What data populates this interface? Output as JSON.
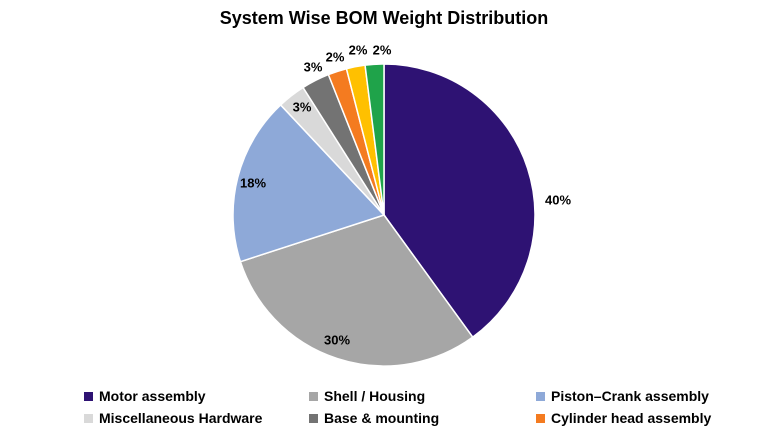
{
  "chart_data": {
    "type": "pie",
    "title": "System Wise BOM Weight Distribution",
    "slices": [
      {
        "name": "Motor assembly",
        "value": 40,
        "label": "40%",
        "color": "#2e1273"
      },
      {
        "name": "Shell / Housing",
        "value": 30,
        "label": "30%",
        "color": "#a6a6a6"
      },
      {
        "name": "Piston–Crank assembly",
        "value": 18,
        "label": "18%",
        "color": "#8ea9d8"
      },
      {
        "name": "Miscellaneous Hardware",
        "value": 3,
        "label": "3%",
        "color": "#d9d9d9"
      },
      {
        "name": "Base & mounting",
        "value": 3,
        "label": "3%",
        "color": "#737373"
      },
      {
        "name": "Cylinder head assembly",
        "value": 2,
        "label": "2%",
        "color": "#f47b20"
      },
      {
        "name": "",
        "value": 2,
        "label": "2%",
        "color": "#ffc000"
      },
      {
        "name": "",
        "value": 2,
        "label": "2%",
        "color": "#1fa34a"
      }
    ],
    "start_angle": "12 o'clock",
    "direction": "clockwise",
    "legend_position": "bottom"
  }
}
